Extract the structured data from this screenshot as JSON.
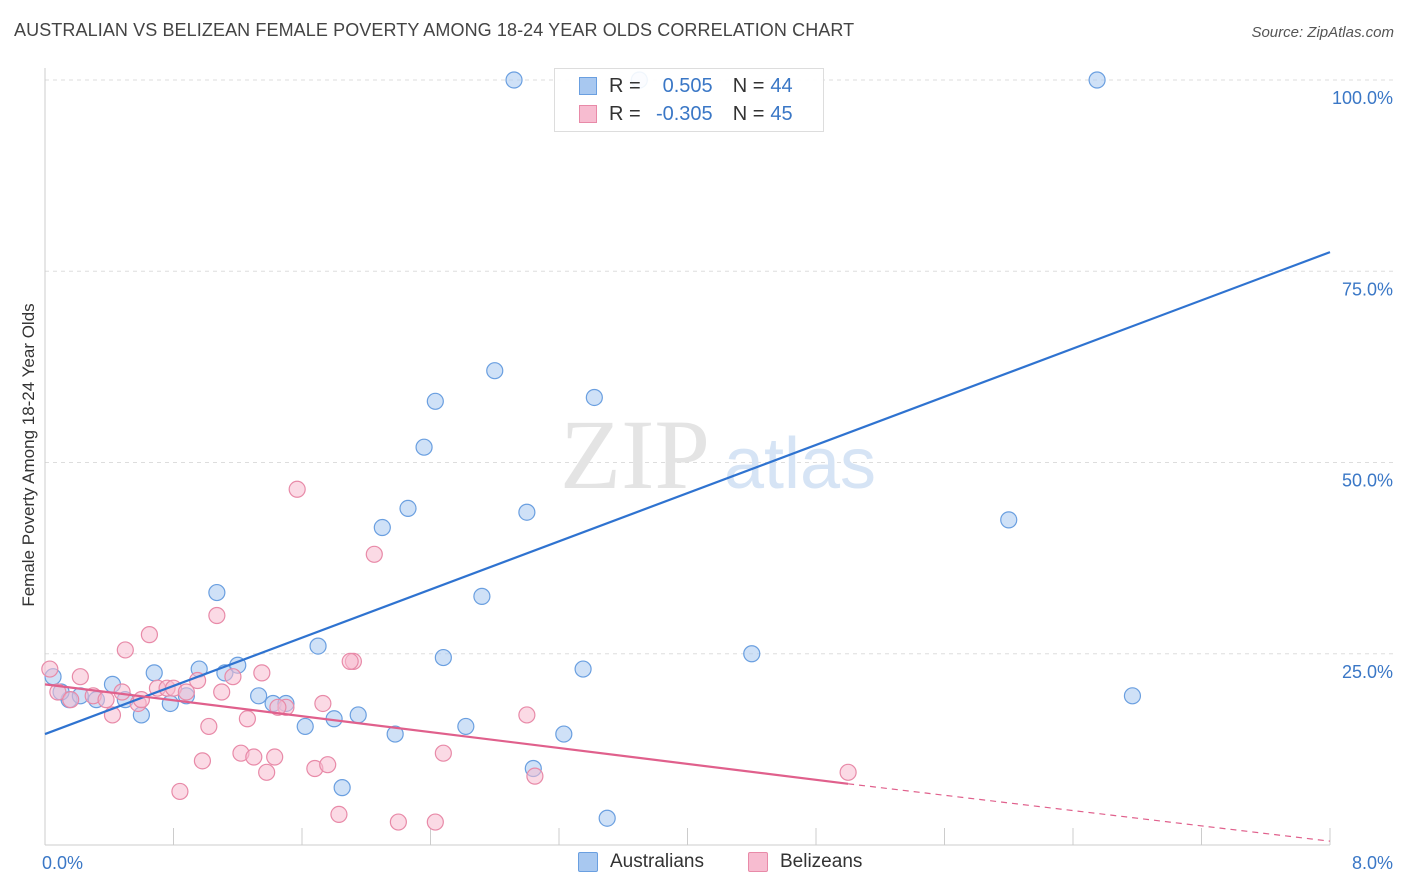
{
  "title": "AUSTRALIAN VS BELIZEAN FEMALE POVERTY AMONG 18-24 YEAR OLDS CORRELATION CHART",
  "source": "Source: ZipAtlas.com",
  "watermark": {
    "zip": "ZIP",
    "atlas": "atlas"
  },
  "legend_stats": [
    {
      "r_label": "R =",
      "r_value": "0.505",
      "n_label": "N =",
      "n_value": "44",
      "color": "#a8c8f0",
      "border": "#6a9fe0"
    },
    {
      "r_label": "R =",
      "r_value": "-0.305",
      "n_label": "N =",
      "n_value": "45",
      "color": "#f7bcd0",
      "border": "#e88aa8"
    }
  ],
  "bottom_legend": [
    {
      "label": "Australians",
      "color": "#a8c8f0",
      "border": "#6a9fe0"
    },
    {
      "label": "Belizeans",
      "color": "#f7bcd0",
      "border": "#e88aa8"
    }
  ],
  "chart_data": {
    "type": "scatter",
    "xlabel": "",
    "ylabel": "Female Poverty Among 18-24 Year Olds",
    "xlim": [
      0,
      8
    ],
    "ylim": [
      0,
      100
    ],
    "x_tick_labels": [
      "0.0%",
      "8.0%"
    ],
    "y_tick_labels": [
      "100.0%",
      "75.0%",
      "50.0%",
      "25.0%"
    ],
    "y_ticks": [
      100,
      75,
      50,
      25
    ],
    "grid": true,
    "series": [
      {
        "name": "Australians",
        "color": "#6a9fe0",
        "fill": "#a8c8f0",
        "trend_color": "#2f73d0",
        "trend": {
          "x0": 0,
          "y0": 14.5,
          "x1": 8,
          "y1": 77.5
        },
        "points": [
          [
            0.05,
            22.0
          ],
          [
            0.15,
            19.0
          ],
          [
            0.22,
            19.5
          ],
          [
            0.32,
            19.0
          ],
          [
            0.42,
            21.0
          ],
          [
            0.5,
            19.0
          ],
          [
            0.6,
            17.0
          ],
          [
            0.68,
            22.5
          ],
          [
            0.78,
            18.5
          ],
          [
            0.88,
            19.5
          ],
          [
            0.96,
            23.0
          ],
          [
            1.07,
            33.0
          ],
          [
            1.12,
            22.5
          ],
          [
            1.2,
            23.5
          ],
          [
            1.33,
            19.5
          ],
          [
            1.42,
            18.5
          ],
          [
            1.5,
            18.5
          ],
          [
            1.62,
            15.5
          ],
          [
            1.7,
            26.0
          ],
          [
            1.8,
            16.5
          ],
          [
            1.85,
            7.5
          ],
          [
            1.95,
            17.0
          ],
          [
            2.1,
            41.5
          ],
          [
            2.18,
            14.5
          ],
          [
            2.26,
            44.0
          ],
          [
            2.36,
            52.0
          ],
          [
            2.43,
            58.0
          ],
          [
            2.48,
            24.5
          ],
          [
            2.62,
            15.5
          ],
          [
            2.72,
            32.5
          ],
          [
            2.8,
            62.0
          ],
          [
            2.92,
            100.0
          ],
          [
            3.0,
            43.5
          ],
          [
            3.04,
            10.0
          ],
          [
            3.23,
            14.5
          ],
          [
            3.35,
            23.0
          ],
          [
            3.42,
            58.5
          ],
          [
            3.5,
            3.5
          ],
          [
            3.7,
            100.0
          ],
          [
            4.4,
            25.0
          ],
          [
            6.0,
            42.5
          ],
          [
            6.55,
            100.0
          ],
          [
            6.77,
            19.5
          ],
          [
            0.1,
            20.0
          ]
        ]
      },
      {
        "name": "Belizeans",
        "color": "#e88aa8",
        "fill": "#f7bcd0",
        "trend_color": "#e0608c",
        "trend": {
          "x0": 0,
          "y0": 21.0,
          "x1": 5.0,
          "y1": 8.0
        },
        "trend_dashed": {
          "x0": 5.0,
          "y0": 8.0,
          "x1": 8,
          "y1": 0.5
        },
        "points": [
          [
            0.03,
            23.0
          ],
          [
            0.08,
            20.0
          ],
          [
            0.16,
            19.0
          ],
          [
            0.22,
            22.0
          ],
          [
            0.3,
            19.5
          ],
          [
            0.38,
            19.0
          ],
          [
            0.42,
            17.0
          ],
          [
            0.48,
            20.0
          ],
          [
            0.5,
            25.5
          ],
          [
            0.58,
            18.5
          ],
          [
            0.6,
            19.0
          ],
          [
            0.65,
            27.5
          ],
          [
            0.7,
            20.5
          ],
          [
            0.76,
            20.5
          ],
          [
            0.8,
            20.5
          ],
          [
            0.84,
            7.0
          ],
          [
            0.88,
            20.0
          ],
          [
            0.95,
            21.5
          ],
          [
            0.98,
            11.0
          ],
          [
            1.02,
            15.5
          ],
          [
            1.07,
            30.0
          ],
          [
            1.1,
            20.0
          ],
          [
            1.17,
            22.0
          ],
          [
            1.22,
            12.0
          ],
          [
            1.26,
            16.5
          ],
          [
            1.3,
            11.5
          ],
          [
            1.35,
            22.5
          ],
          [
            1.38,
            9.5
          ],
          [
            1.43,
            11.5
          ],
          [
            1.5,
            18.0
          ],
          [
            1.57,
            46.5
          ],
          [
            1.68,
            10.0
          ],
          [
            1.73,
            18.5
          ],
          [
            1.76,
            10.5
          ],
          [
            1.83,
            4.0
          ],
          [
            1.92,
            24.0
          ],
          [
            2.05,
            38.0
          ],
          [
            2.2,
            3.0
          ],
          [
            2.43,
            3.0
          ],
          [
            2.48,
            12.0
          ],
          [
            3.0,
            17.0
          ],
          [
            3.05,
            9.0
          ],
          [
            5.0,
            9.5
          ],
          [
            1.45,
            18.0
          ],
          [
            1.9,
            24.0
          ]
        ]
      }
    ]
  }
}
